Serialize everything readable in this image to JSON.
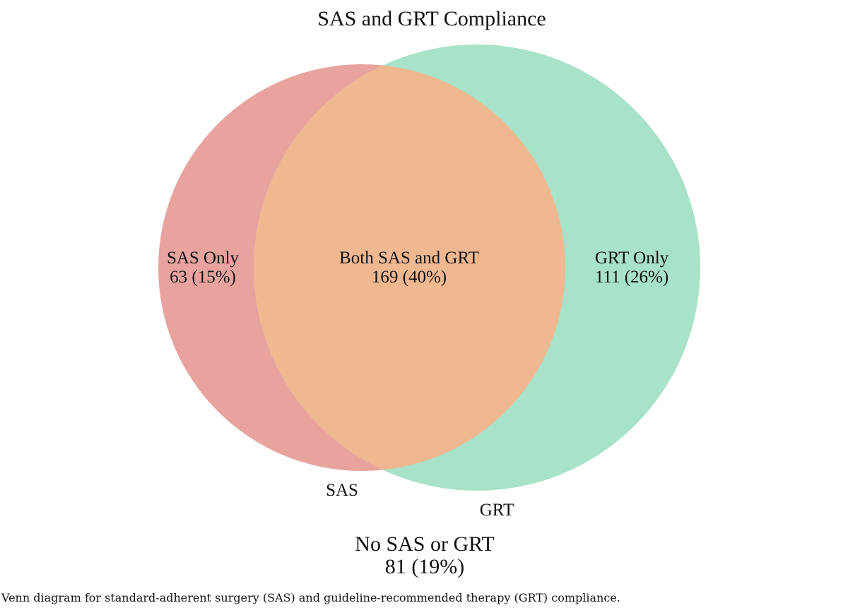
{
  "title": "SAS and GRT Compliance",
  "sets": [
    {
      "key": "SAS",
      "label": "SAS",
      "color": "#e8a39e"
    },
    {
      "key": "GRT",
      "label": "GRT",
      "color": "#a8e2c8"
    }
  ],
  "intersection_color": "#f0b890",
  "regions": {
    "sas_only": {
      "name": "SAS Only",
      "value": "63 (15%)"
    },
    "both": {
      "name": "Both SAS and GRT",
      "value": "169 (40%)"
    },
    "grt_only": {
      "name": "GRT Only",
      "value": "111 (26%)"
    },
    "neither": {
      "name": "No SAS or GRT",
      "value": "81 (19%)"
    }
  },
  "caption": "Venn diagram for standard-adherent surgery (SAS) and guideline-recommended therapy (GRT) compliance."
}
